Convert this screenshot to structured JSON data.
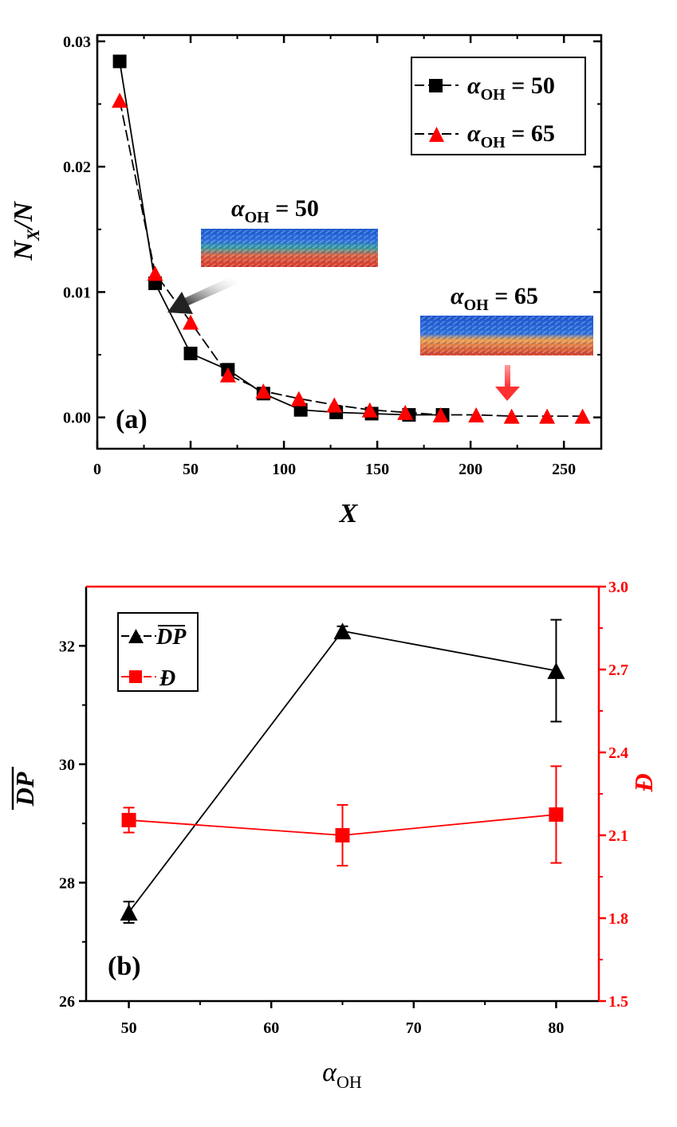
{
  "colors": {
    "black": "#000000",
    "red": "#ff0000",
    "gray": "#777777"
  },
  "chart_data": [
    {
      "id": "a",
      "type": "line",
      "panel_label": "(a)",
      "xlabel": "X",
      "ylabel_main": "N",
      "ylabel_sub": "X",
      "ylabel_tail": "/N",
      "xlim": [
        0,
        270
      ],
      "ylim": [
        -0.0025,
        0.0305
      ],
      "xticks": [
        0,
        50,
        100,
        150,
        200,
        250
      ],
      "xtick_labels": [
        "0",
        "50",
        "100",
        "150",
        "200",
        "250"
      ],
      "yticks": [
        0.0,
        0.01,
        0.02,
        0.03
      ],
      "ytick_labels": [
        "0.00",
        "0.01",
        "0.02",
        "0.03"
      ],
      "series": [
        {
          "name": "α_OH = 50",
          "legend_symbol": "α",
          "legend_sub": "OH",
          "legend_value": " = 50",
          "marker": "square",
          "color": "#000000",
          "x": [
            12,
            31,
            50,
            70,
            89,
            109,
            128,
            147,
            167,
            185
          ],
          "y": [
            0.0284,
            0.0107,
            0.0051,
            0.0038,
            0.0019,
            0.0006,
            0.0004,
            0.0003,
            0.0002,
            0.0002
          ]
        },
        {
          "name": "α_OH = 65",
          "legend_symbol": "α",
          "legend_sub": "OH",
          "legend_value": " = 65",
          "marker": "triangle",
          "color": "#ff0000",
          "x": [
            12,
            31,
            50,
            70,
            89,
            108,
            127,
            146,
            165,
            184,
            203,
            222,
            241,
            260
          ],
          "y": [
            0.0253,
            0.0115,
            0.0076,
            0.0034,
            0.0021,
            0.0015,
            0.001,
            0.0006,
            0.0004,
            0.0002,
            0.0002,
            0.0001,
            0.0001,
            0.0001
          ]
        }
      ],
      "annotations": [
        {
          "id": "inset-50",
          "symbol": "α",
          "sub": "OH",
          "value": " = 50"
        },
        {
          "id": "inset-65",
          "symbol": "α",
          "sub": "OH",
          "value": " = 65"
        }
      ]
    },
    {
      "id": "b",
      "type": "line",
      "panel_label": "(b)",
      "xlabel_symbol": "α",
      "xlabel_sub": "OH",
      "ylabel_left": "DP",
      "ylabel_right": "Đ",
      "xlim": [
        47,
        83
      ],
      "ylim_left": [
        26,
        33
      ],
      "ylim_right": [
        1.5,
        3.0
      ],
      "xticks": [
        50,
        60,
        70,
        80
      ],
      "xtick_labels": [
        "50",
        "60",
        "70",
        "80"
      ],
      "yticks_left": [
        26,
        28,
        30,
        32
      ],
      "ytick_labels_left": [
        "26",
        "28",
        "30",
        "32"
      ],
      "yticks_right": [
        1.5,
        1.8,
        2.1,
        2.4,
        2.7,
        3.0
      ],
      "ytick_labels_right": [
        "1.5",
        "1.8",
        "2.1",
        "2.4",
        "2.7",
        "3.0"
      ],
      "series": [
        {
          "name": "DP",
          "legend_label": "DP",
          "axis": "left",
          "marker": "triangle",
          "color": "#000000",
          "x": [
            50,
            65,
            80
          ],
          "y": [
            27.5,
            32.25,
            31.58
          ],
          "err": [
            0.18,
            0.08,
            0.86
          ]
        },
        {
          "name": "Đ",
          "legend_label": "Đ",
          "axis": "right",
          "marker": "square",
          "color": "#ff0000",
          "x": [
            50,
            65,
            80
          ],
          "y": [
            2.155,
            2.1,
            2.175
          ],
          "err": [
            0.045,
            0.11,
            0.175
          ]
        }
      ]
    }
  ]
}
